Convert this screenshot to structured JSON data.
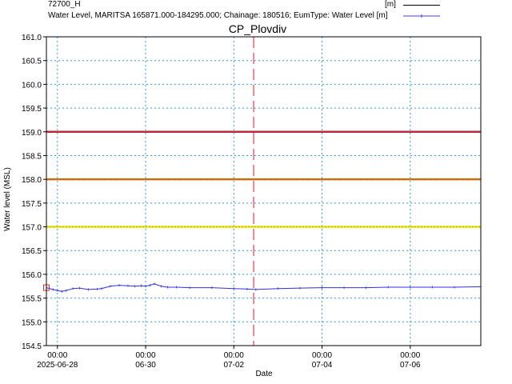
{
  "legend": {
    "item1": {
      "label": "72700_H",
      "unit": "[m]",
      "color": "#000000"
    },
    "item2": {
      "label": "Water Level, MARITSA 165871.000-184295.000; Chainage: 180516; EumType: Water Level [m]",
      "color": "#4040ff"
    }
  },
  "chart_data": {
    "type": "line",
    "title": "CP_Plovdiv",
    "xlabel": "Date",
    "ylabel": "Water level (MSL)",
    "ylim": [
      154.5,
      161.0
    ],
    "yticks": [
      "154.5",
      "155.0",
      "155.5",
      "156.0",
      "156.5",
      "157.0",
      "157.5",
      "158.0",
      "158.5",
      "159.0",
      "159.5",
      "160.0",
      "160.5",
      "161.0"
    ],
    "xlim_days": [
      -0.25,
      9.6
    ],
    "xticks": [
      {
        "day": 0,
        "time": "00:00",
        "date": "2025-06-28"
      },
      {
        "day": 2,
        "time": "00:00",
        "date": "06-30"
      },
      {
        "day": 4,
        "time": "00:00",
        "date": "07-02"
      },
      {
        "day": 6,
        "time": "00:00",
        "date": "07-04"
      },
      {
        "day": 8,
        "time": "00:00",
        "date": "07-06"
      }
    ],
    "grid": true,
    "threshold_lines": [
      {
        "value": 159.0,
        "color": "#c0273a"
      },
      {
        "value": 158.0,
        "color": "#d07010"
      },
      {
        "value": 157.0,
        "color": "#e8e800"
      }
    ],
    "current_time_day": 4.45,
    "series": [
      {
        "color": "#3030e0",
        "x": [
          -0.25,
          -0.1,
          0,
          0.1,
          0.2,
          0.35,
          0.5,
          0.7,
          0.9,
          1.0,
          1.2,
          1.4,
          1.6,
          1.75,
          1.9,
          2.0,
          2.1,
          2.2,
          2.35,
          2.5,
          2.7,
          3.0,
          3.5,
          4.0,
          4.3,
          4.5,
          5.0,
          5.5,
          6.0,
          6.5,
          7.0,
          7.5,
          8.0,
          8.5,
          9.0,
          9.6
        ],
        "y": [
          155.72,
          155.68,
          155.66,
          155.64,
          155.66,
          155.7,
          155.71,
          155.68,
          155.69,
          155.7,
          155.75,
          155.77,
          155.76,
          155.75,
          155.76,
          155.75,
          155.77,
          155.8,
          155.75,
          155.73,
          155.73,
          155.72,
          155.72,
          155.7,
          155.69,
          155.68,
          155.7,
          155.71,
          155.72,
          155.72,
          155.72,
          155.73,
          155.73,
          155.73,
          155.73,
          155.74
        ]
      }
    ],
    "start_marker": {
      "day": -0.25,
      "value": 155.72,
      "color": "#e03030"
    }
  }
}
